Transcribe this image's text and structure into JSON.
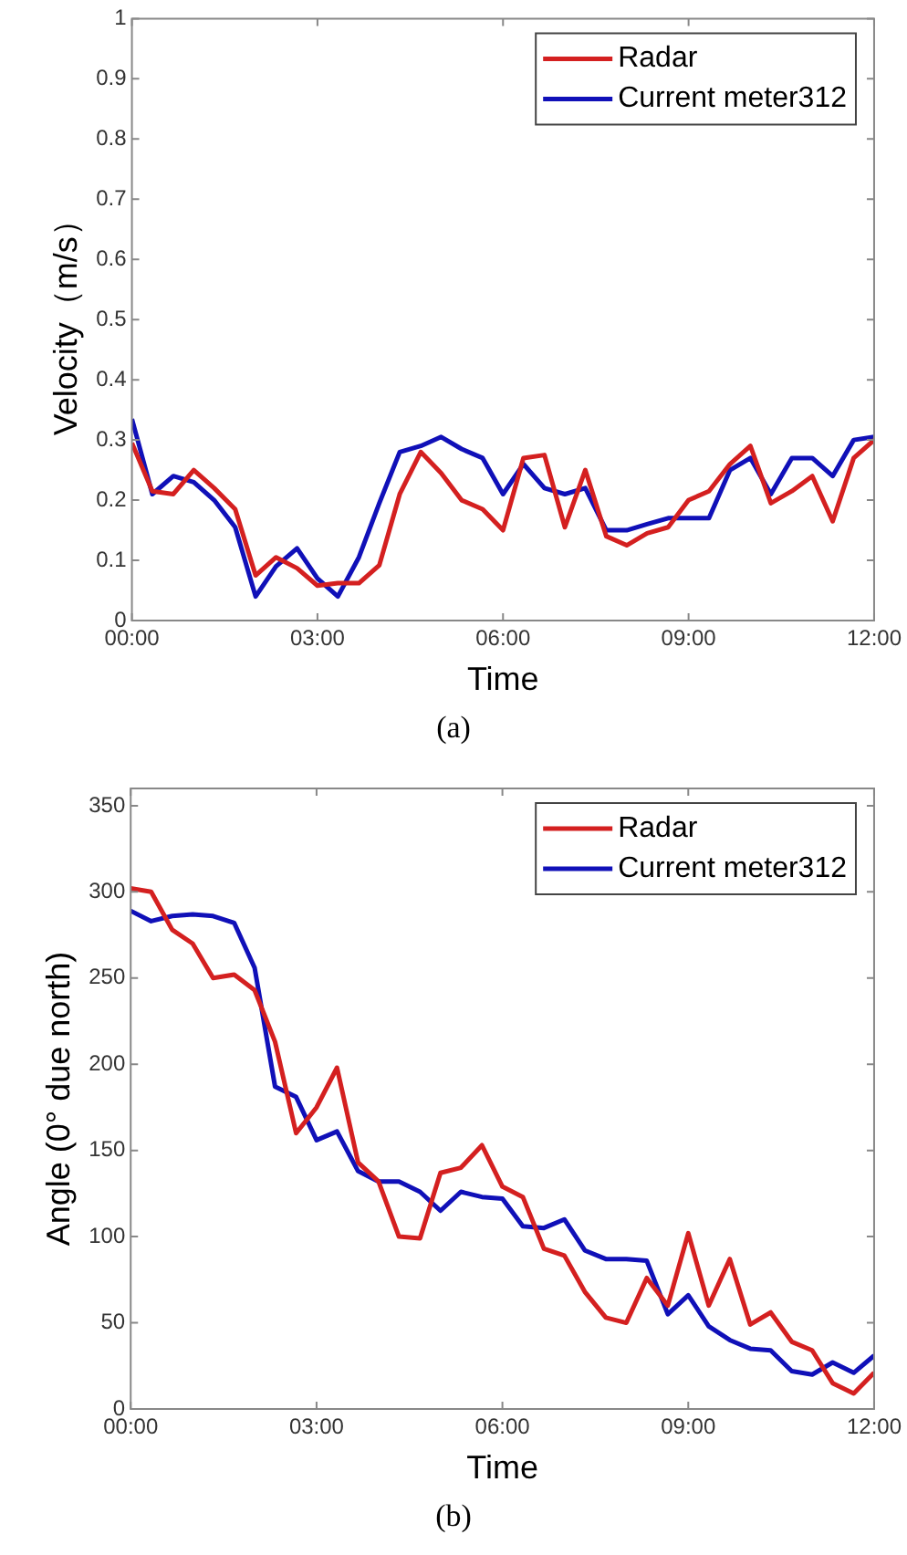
{
  "chart_data": [
    {
      "type": "line",
      "xlabel": "Time",
      "ylabel": "Velocity（m/s）",
      "annotations": [
        "(a)"
      ],
      "x": [
        0,
        0.33,
        0.67,
        1,
        1.33,
        1.67,
        2,
        2.33,
        2.67,
        3,
        3.33,
        3.67,
        4,
        4.33,
        4.67,
        5,
        5.33,
        5.67,
        6,
        6.33,
        6.67,
        7,
        7.33,
        7.67,
        8,
        8.33,
        8.67,
        9,
        9.33,
        9.67,
        10,
        10.33,
        10.67,
        11,
        11.33,
        11.67,
        12
      ],
      "series": [
        {
          "name": "Radar",
          "color": "#d42020",
          "values": [
            0.295,
            0.215,
            0.21,
            0.25,
            0.22,
            0.185,
            0.075,
            0.105,
            0.087,
            0.058,
            0.062,
            0.062,
            0.092,
            0.21,
            0.28,
            0.245,
            0.2,
            0.185,
            0.15,
            0.27,
            0.275,
            0.155,
            0.25,
            0.14,
            0.125,
            0.145,
            0.155,
            0.2,
            0.215,
            0.26,
            0.29,
            0.195,
            0.215,
            0.24,
            0.165,
            0.27,
            0.3
          ]
        },
        {
          "name": "Current meter312",
          "color": "#1010b8",
          "values": [
            0.335,
            0.21,
            0.24,
            0.23,
            0.2,
            0.155,
            0.04,
            0.09,
            0.12,
            0.07,
            0.04,
            0.105,
            0.195,
            0.28,
            0.29,
            0.305,
            0.285,
            0.27,
            0.21,
            0.26,
            0.22,
            0.21,
            0.22,
            0.15,
            0.15,
            0.16,
            0.17,
            0.17,
            0.17,
            0.25,
            0.27,
            0.21,
            0.27,
            0.27,
            0.24,
            0.3,
            0.305
          ]
        }
      ],
      "xlim": [
        0,
        12
      ],
      "xticks": [
        {
          "value": 0,
          "label": "00:00"
        },
        {
          "value": 3,
          "label": "03:00"
        },
        {
          "value": 6,
          "label": "06:00"
        },
        {
          "value": 9,
          "label": "09:00"
        },
        {
          "value": 12,
          "label": "12:00"
        }
      ],
      "ylim": [
        0,
        1
      ],
      "yticks": [
        0,
        0.1,
        0.2,
        0.3,
        0.4,
        0.5,
        0.6,
        0.7,
        0.8,
        0.9,
        1
      ],
      "grid": false,
      "legend": "top right",
      "line_style": "solid",
      "marker": "none"
    },
    {
      "type": "line",
      "xlabel": "Time",
      "ylabel": "Angle (0° due north)",
      "annotations": [
        "(b)"
      ],
      "x": [
        0,
        0.33,
        0.67,
        1,
        1.33,
        1.67,
        2,
        2.33,
        2.67,
        3,
        3.33,
        3.67,
        4,
        4.33,
        4.67,
        5,
        5.33,
        5.67,
        6,
        6.33,
        6.67,
        7,
        7.33,
        7.67,
        8,
        8.33,
        8.67,
        9,
        9.33,
        9.67,
        10,
        10.33,
        10.67,
        11,
        11.33,
        11.67,
        12
      ],
      "series": [
        {
          "name": "Radar",
          "color": "#d42020",
          "values": [
            302,
            300,
            278,
            270,
            250,
            252,
            243,
            213,
            160,
            175,
            198,
            143,
            132,
            100,
            99,
            137,
            140,
            153,
            129,
            123,
            93,
            89,
            68,
            53,
            50,
            76,
            60,
            102,
            60,
            87,
            49,
            56,
            39,
            34,
            15,
            9,
            21
          ]
        },
        {
          "name": "Current meter312",
          "color": "#1010b8",
          "values": [
            289,
            283,
            286,
            287,
            286,
            282,
            256,
            187,
            181,
            156,
            161,
            138,
            132,
            132,
            126,
            115,
            126,
            123,
            122,
            106,
            105,
            110,
            92,
            87,
            87,
            86,
            55,
            66,
            48,
            40,
            35,
            34,
            22,
            20,
            27,
            21,
            31
          ]
        }
      ],
      "xlim": [
        0,
        12
      ],
      "xticks": [
        {
          "value": 0,
          "label": "00:00"
        },
        {
          "value": 3,
          "label": "03:00"
        },
        {
          "value": 6,
          "label": "06:00"
        },
        {
          "value": 9,
          "label": "09:00"
        },
        {
          "value": 12,
          "label": "12:00"
        }
      ],
      "ylim": [
        0,
        360
      ],
      "yticks": [
        0,
        50,
        100,
        150,
        200,
        250,
        300,
        350
      ],
      "grid": false,
      "legend": "top right",
      "line_style": "solid",
      "marker": "none"
    }
  ]
}
